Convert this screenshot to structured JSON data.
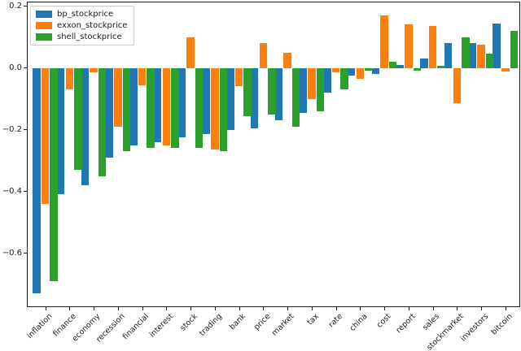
{
  "chart_data": {
    "type": "bar",
    "title": "",
    "xlabel": "",
    "ylabel": "",
    "grid": false,
    "legend_position": "upper left",
    "categories": [
      "inflation",
      "finance",
      "economy",
      "recession",
      "financial",
      "interest",
      "stock",
      "trading",
      "bank",
      "price",
      "market",
      "tax",
      "rate",
      "china",
      "cost",
      "report",
      "sales",
      "stockmarket",
      "investors",
      "bitcoin"
    ],
    "series": [
      {
        "name": "bp_stockprice",
        "color": "#1f77b4",
        "values": [
          -0.73,
          -0.41,
          -0.38,
          -0.29,
          -0.25,
          -0.24,
          -0.225,
          -0.215,
          -0.2,
          -0.195,
          -0.17,
          -0.145,
          -0.08,
          -0.025,
          -0.02,
          0.01,
          0.03,
          0.08,
          0.08,
          0.145
        ]
      },
      {
        "name": "exxon_stockprice",
        "color": "#ff7f0e",
        "values": [
          -0.44,
          -0.07,
          -0.015,
          -0.19,
          -0.055,
          -0.25,
          0.1,
          -0.265,
          -0.06,
          0.08,
          0.05,
          -0.1,
          -0.015,
          -0.035,
          0.17,
          0.14,
          0.135,
          -0.115,
          0.075,
          -0.012
        ]
      },
      {
        "name": "shell_stockprice",
        "color": "#2ca02c",
        "values": [
          -0.69,
          -0.33,
          -0.35,
          -0.27,
          -0.26,
          -0.26,
          -0.26,
          -0.27,
          -0.155,
          -0.15,
          -0.19,
          -0.14,
          -0.07,
          -0.008,
          0.02,
          -0.008,
          0.008,
          0.1,
          0.047,
          0.12
        ]
      }
    ],
    "ylim": [
      -0.775,
      0.215
    ],
    "yticks": [
      0.2,
      0.0,
      -0.2,
      -0.4,
      -0.6
    ],
    "ytick_labels": [
      "0.2",
      "0.0",
      "−0.2",
      "−0.4",
      "−0.6"
    ]
  }
}
